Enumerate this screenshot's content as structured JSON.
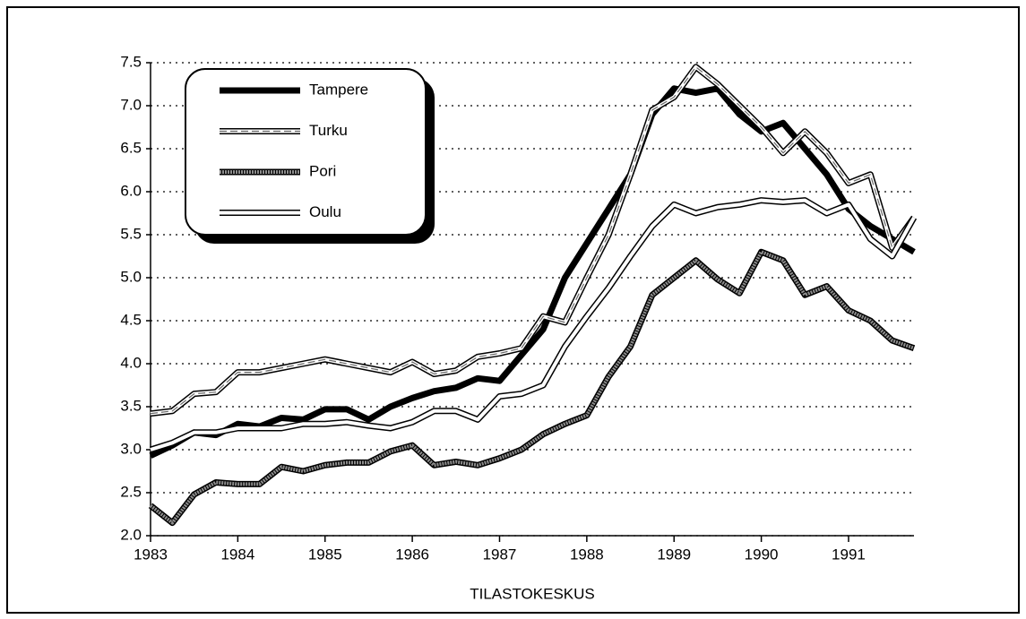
{
  "chart_data": {
    "type": "line",
    "xlabel": "TILASTOKESKUS",
    "x": [
      1983,
      1983.25,
      1983.5,
      1983.75,
      1984,
      1984.25,
      1984.5,
      1984.75,
      1985,
      1985.25,
      1985.5,
      1985.75,
      1986,
      1986.25,
      1986.5,
      1986.75,
      1987,
      1987.25,
      1987.5,
      1987.75,
      1988,
      1988.25,
      1988.5,
      1988.75,
      1989,
      1989.25,
      1989.5,
      1989.75,
      1990,
      1990.25,
      1990.5,
      1990.75,
      1991,
      1991.25,
      1991.5,
      1991.75
    ],
    "series": [
      {
        "name": "Tampere",
        "color": "#000000",
        "line_style": "solid",
        "values": [
          2.93,
          3.05,
          3.2,
          3.17,
          3.3,
          3.27,
          3.37,
          3.35,
          3.47,
          3.47,
          3.35,
          3.5,
          3.6,
          3.68,
          3.72,
          3.83,
          3.8,
          4.1,
          4.4,
          5.0,
          5.4,
          5.8,
          6.2,
          6.9,
          7.2,
          7.15,
          7.2,
          6.9,
          6.7,
          6.8,
          6.5,
          6.2,
          5.8,
          5.6,
          5.45,
          5.3
        ]
      },
      {
        "name": "Turku",
        "color": "#ffffff",
        "line_style": "dashed-double",
        "values": [
          3.42,
          3.45,
          3.65,
          3.67,
          3.9,
          3.9,
          3.95,
          4.0,
          4.05,
          4.0,
          3.95,
          3.9,
          4.02,
          3.88,
          3.92,
          4.08,
          4.12,
          4.18,
          4.55,
          4.48,
          5.0,
          5.5,
          6.2,
          6.95,
          7.1,
          7.45,
          7.25,
          7.0,
          6.75,
          6.45,
          6.7,
          6.45,
          6.1,
          6.2,
          5.35,
          5.7
        ]
      },
      {
        "name": "Pori",
        "color": "#8c8c8c",
        "line_style": "dotted",
        "values": [
          2.35,
          2.15,
          2.48,
          2.62,
          2.6,
          2.6,
          2.8,
          2.75,
          2.82,
          2.85,
          2.85,
          2.98,
          3.05,
          2.82,
          2.86,
          2.82,
          2.9,
          3.0,
          3.18,
          3.3,
          3.4,
          3.85,
          4.2,
          4.8,
          5.0,
          5.2,
          4.98,
          4.82,
          5.3,
          5.2,
          4.8,
          4.9,
          4.62,
          4.5,
          4.27,
          4.18
        ]
      },
      {
        "name": "Oulu",
        "color": "#ffffff",
        "line_style": "double",
        "values": [
          3.0,
          3.08,
          3.2,
          3.2,
          3.25,
          3.25,
          3.25,
          3.3,
          3.3,
          3.32,
          3.28,
          3.25,
          3.32,
          3.45,
          3.45,
          3.35,
          3.62,
          3.65,
          3.75,
          4.2,
          4.55,
          4.88,
          5.25,
          5.6,
          5.85,
          5.75,
          5.82,
          5.85,
          5.9,
          5.88,
          5.9,
          5.75,
          5.85,
          5.45,
          5.25,
          5.7
        ]
      }
    ],
    "xlim": [
      1983,
      1991.75
    ],
    "xticks": [
      1983,
      1984,
      1985,
      1986,
      1987,
      1988,
      1989,
      1990,
      1991
    ],
    "ylim": [
      2,
      7.5
    ],
    "yticks": [
      {
        "value": 2,
        "label": "2.0"
      },
      2.5,
      {
        "value": 3,
        "label": "3.0"
      },
      3.5,
      {
        "value": 4,
        "label": "4.0"
      },
      4.5,
      {
        "value": 5,
        "label": "5.0"
      },
      5.5,
      {
        "value": 6,
        "label": "6.0"
      },
      6.5,
      {
        "value": 7,
        "label": "7.0"
      },
      7.5
    ],
    "grid": true,
    "legend": "upper left"
  }
}
